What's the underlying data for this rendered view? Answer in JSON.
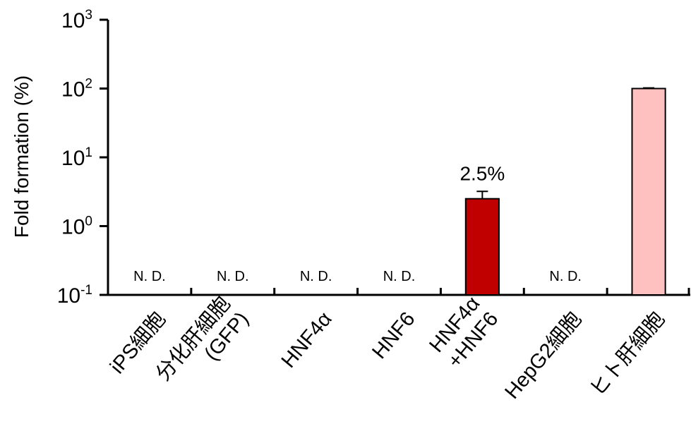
{
  "chart_data": {
    "type": "bar",
    "ylabel": "Fold formation (%)",
    "yscale": "log",
    "ylim": [
      0.1,
      1000
    ],
    "yticks": [
      {
        "value": 0.1,
        "base": "10",
        "exp": "-1"
      },
      {
        "value": 1,
        "base": "10",
        "exp": "0"
      },
      {
        "value": 10,
        "base": "10",
        "exp": "1"
      },
      {
        "value": 100,
        "base": "10",
        "exp": "2"
      },
      {
        "value": 1000,
        "base": "10",
        "exp": "3"
      }
    ],
    "categories": [
      {
        "lines": [
          "iPS細胞"
        ],
        "value": null,
        "nd_label": "N. D."
      },
      {
        "lines": [
          "分化肝細胞",
          "(GFP)"
        ],
        "value": null,
        "nd_label": "N. D."
      },
      {
        "lines": [
          "HNF4α"
        ],
        "value": null,
        "nd_label": "N. D."
      },
      {
        "lines": [
          "HNF6"
        ],
        "value": null,
        "nd_label": "N. D."
      },
      {
        "lines": [
          "HNF4α",
          "+HNF6"
        ],
        "value": 2.5,
        "error": 0.7,
        "color": "#c00000",
        "data_label": "2.5%"
      },
      {
        "lines": [
          "HepG2細胞"
        ],
        "value": null,
        "nd_label": "N. D."
      },
      {
        "lines": [
          "ヒト肝細胞"
        ],
        "value": 100,
        "error": 2,
        "color": "#ffc0c0"
      }
    ]
  }
}
